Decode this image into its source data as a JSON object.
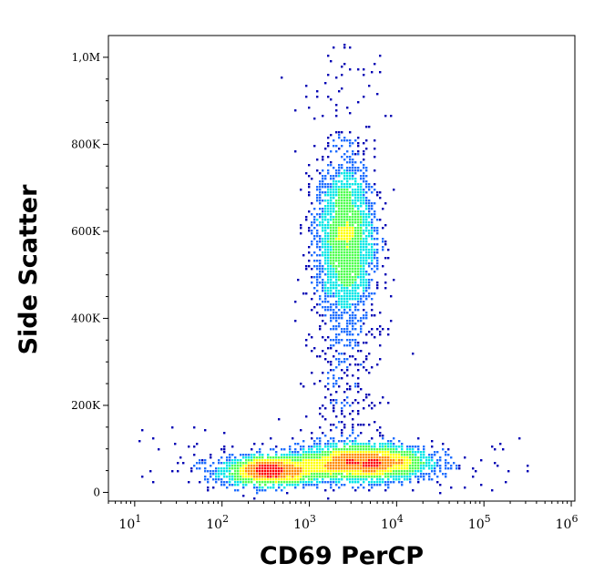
{
  "chart_data": {
    "type": "scatter",
    "style": "density-flow-cytometry",
    "xlabel": "CD69 PerCP",
    "ylabel": "Side Scatter",
    "x_scale": "log",
    "xlim": [
      5,
      1100000
    ],
    "ylim": [
      -20000,
      1050000
    ],
    "x_ticks": [
      {
        "value": 10,
        "base": "10",
        "exp": "1"
      },
      {
        "value": 100,
        "base": "10",
        "exp": "2"
      },
      {
        "value": 1000,
        "base": "10",
        "exp": "3"
      },
      {
        "value": 10000,
        "base": "10",
        "exp": "4"
      },
      {
        "value": 100000,
        "base": "10",
        "exp": "5"
      },
      {
        "value": 1000000,
        "base": "10",
        "exp": "6"
      }
    ],
    "y_ticks": [
      {
        "value": 0,
        "label": "0"
      },
      {
        "value": 200000,
        "label": "200K"
      },
      {
        "value": 400000,
        "label": "400K"
      },
      {
        "value": 600000,
        "label": "600K"
      },
      {
        "value": 800000,
        "label": "800K"
      },
      {
        "value": 1000000,
        "label": "1,0M"
      }
    ],
    "populations": [
      {
        "name": "low SSC, CD69 dim",
        "x_center": 350,
        "y_center": 50000,
        "density": "highest"
      },
      {
        "name": "low SSC, CD69 mid",
        "x_center": 5000,
        "y_center": 70000,
        "density": "high"
      },
      {
        "name": "high SSC",
        "x_center": 2500,
        "y_center": 580000,
        "density": "medium"
      }
    ],
    "colormap": [
      "#0000b4",
      "#1e6eff",
      "#00e6e6",
      "#50ff50",
      "#ffff00",
      "#ff8c00",
      "#ff0000"
    ]
  }
}
